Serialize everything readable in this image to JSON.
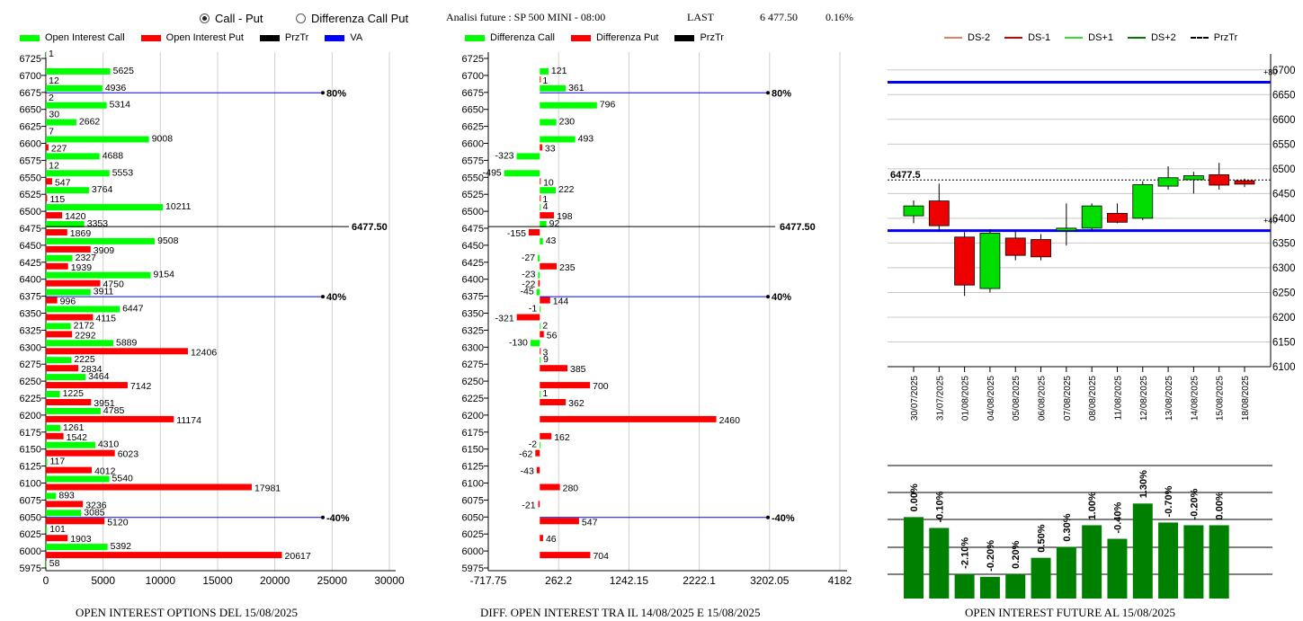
{
  "header": {
    "radio_call_put": "Call - Put",
    "radio_diff": "Differenza Call Put",
    "title": "Analisi future : SP 500 MINI - 08:00",
    "last_label": "LAST",
    "last_value": "6 477.50",
    "change": "0.16%"
  },
  "colors": {
    "green": "#00ff00",
    "red": "#ff0000",
    "black": "#000000",
    "blue": "#0000ff",
    "darkgreen": "#008000"
  },
  "strikes": [
    "6725",
    "6700",
    "6675",
    "6650",
    "6625",
    "6600",
    "6575",
    "6550",
    "6525",
    "6500",
    "6475",
    "6450",
    "6425",
    "6400",
    "6375",
    "6350",
    "6325",
    "6300",
    "6275",
    "6250",
    "6225",
    "6200",
    "6175",
    "6150",
    "6125",
    "6100",
    "6075",
    "6050",
    "6025",
    "6000",
    "5975"
  ],
  "left_panel": {
    "legend": [
      "Open Interest Call",
      "Open Interest Put",
      "PrzTr",
      "VA"
    ],
    "caption": "OPEN INTEREST OPTIONS DEL 15/08/2025",
    "xticks": [
      "0",
      "5000",
      "10000",
      "15000",
      "20000",
      "25000",
      "30000"
    ],
    "price_label": "6477.50",
    "ref_lines": [
      {
        "strike": 6675,
        "label": "80%"
      },
      {
        "strike": 6375,
        "label": "40%"
      },
      {
        "strike": 6050,
        "label": "-40%"
      }
    ]
  },
  "middle_panel": {
    "legend": [
      "Differenza Call",
      "Differenza Put",
      "PrzTr"
    ],
    "caption": "DIFF. OPEN INTEREST TRA IL 14/08/2025 E 15/08/2025",
    "xticks": [
      "-717.75",
      "262.2",
      "1242.15",
      "2222.1",
      "3202.05",
      "4182"
    ],
    "price_label": "6477.50",
    "ref_lines": [
      {
        "strike": 6675,
        "label": "80%"
      },
      {
        "strike": 6375,
        "label": "40%"
      },
      {
        "strike": 6050,
        "label": "-40%"
      }
    ]
  },
  "right_panel": {
    "legend": [
      "DS-2",
      "DS-1",
      "DS+1",
      "DS+2",
      "PrzTr"
    ],
    "caption": "OPEN INTEREST FUTURE AL 15/08/2025",
    "yticks": [
      "6700",
      "6650",
      "6600",
      "6550",
      "6500",
      "6450",
      "6400",
      "6350",
      "6300",
      "6250",
      "6200",
      "6150",
      "6100"
    ],
    "price_label": "6477.5",
    "band_top_label": "+80",
    "band_bottom_label": "+40"
  },
  "chart_data": [
    {
      "type": "bar",
      "title": "OPEN INTEREST OPTIONS DEL 15/08/2025",
      "orientation": "horizontal",
      "categories": [
        "6725",
        "6700",
        "6675",
        "6650",
        "6625",
        "6600",
        "6575",
        "6550",
        "6525",
        "6500",
        "6475",
        "6450",
        "6425",
        "6400",
        "6375",
        "6350",
        "6325",
        "6300",
        "6275",
        "6250",
        "6225",
        "6200",
        "6175",
        "6150",
        "6125",
        "6100",
        "6075",
        "6050",
        "6025",
        "6000",
        "5975"
      ],
      "series": [
        {
          "name": "Open Interest Call",
          "values": [
            1,
            5625,
            4936,
            5314,
            2662,
            9008,
            4688,
            5553,
            3764,
            10211,
            3353,
            9508,
            2327,
            9154,
            3911,
            6447,
            2172,
            5889,
            2225,
            3464,
            1225,
            4785,
            1261,
            4310,
            117,
            5540,
            893,
            3085,
            101,
            5392,
            58
          ]
        },
        {
          "name": "Open Interest Put",
          "values": [
            null,
            12,
            2,
            30,
            7,
            227,
            12,
            547,
            115,
            1420,
            1869,
            3909,
            1939,
            4750,
            996,
            4115,
            2292,
            12406,
            2834,
            7142,
            3951,
            11174,
            1542,
            6023,
            4012,
            17981,
            3236,
            5120,
            1903,
            20617,
            null
          ]
        }
      ],
      "xlim": [
        0,
        32000
      ],
      "price": 6477.5
    },
    {
      "type": "bar",
      "title": "DIFF. OPEN INTEREST TRA IL 14/08/2025 E 15/08/2025",
      "orientation": "horizontal",
      "categories": [
        "6725",
        "6700",
        "6675",
        "6650",
        "6625",
        "6600",
        "6575",
        "6550",
        "6525",
        "6500",
        "6475",
        "6450",
        "6425",
        "6400",
        "6375",
        "6350",
        "6325",
        "6300",
        "6275",
        "6250",
        "6225",
        "6200",
        "6175",
        "6150",
        "6125",
        "6100",
        "6075",
        "6050",
        "6025",
        "6000",
        "5975"
      ],
      "series": [
        {
          "name": "Differenza Call",
          "values": [
            null,
            121,
            361,
            796,
            230,
            493,
            -323,
            -495,
            222,
            4,
            92,
            43,
            -27,
            -23,
            -45,
            -1,
            2,
            -130,
            9,
            null,
            1,
            null,
            null,
            -2,
            null,
            null,
            null,
            null,
            null,
            null,
            null
          ]
        },
        {
          "name": "Differenza Put",
          "values": [
            null,
            1,
            null,
            null,
            null,
            33,
            null,
            10,
            1,
            198,
            -155,
            null,
            235,
            -22,
            144,
            -321,
            56,
            3,
            385,
            700,
            362,
            2460,
            162,
            -62,
            -43,
            280,
            -21,
            547,
            46,
            704,
            null
          ]
        }
      ],
      "xlim": [
        -717.75,
        4182
      ],
      "price": 6477.5
    },
    {
      "type": "candlestick",
      "title": "",
      "dates": [
        "30/07/2025",
        "31/07/2025",
        "01/08/2025",
        "04/08/2025",
        "05/08/2025",
        "06/08/2025",
        "07/08/2025",
        "08/08/2025",
        "11/08/2025",
        "12/08/2025",
        "13/08/2025",
        "14/08/2025",
        "15/08/2025",
        "18/08/2025"
      ],
      "open": [
        6405,
        6435,
        6362,
        6258,
        6360,
        6357,
        6375,
        6380,
        6410,
        6400,
        6465,
        6478,
        6488,
        6476
      ],
      "close": [
        6425,
        6385,
        6265,
        6370,
        6325,
        6322,
        6380,
        6425,
        6392,
        6468,
        6482,
        6486,
        6467,
        6469
      ],
      "high": [
        6436,
        6470,
        6372,
        6378,
        6375,
        6368,
        6430,
        6430,
        6430,
        6475,
        6505,
        6494,
        6512,
        6480
      ],
      "low": [
        6390,
        6375,
        6243,
        6250,
        6315,
        6315,
        6345,
        6375,
        6390,
        6396,
        6458,
        6450,
        6458,
        6463
      ],
      "ylim": [
        6100,
        6725
      ],
      "bands": {
        "upper": 6675,
        "lower": 6375
      },
      "price": 6477.5
    },
    {
      "type": "bar",
      "title": "OPEN INTEREST FUTURE AL 15/08/2025",
      "categories": [
        "30/07/2025",
        "31/07/2025",
        "01/08/2025",
        "04/08/2025",
        "05/08/2025",
        "06/08/2025",
        "07/08/2025",
        "08/08/2025",
        "11/08/2025",
        "12/08/2025",
        "13/08/2025",
        "14/08/2025",
        "15/08/2025",
        "18/08/2025"
      ],
      "values": [
        70,
        66,
        49,
        48,
        49,
        55,
        59,
        67,
        62,
        75,
        68,
        67,
        67
      ],
      "labels": [
        "0.00%",
        "-0.10%",
        "-2.10%",
        "-0.20%",
        "0.20%",
        "0.50%",
        "0.30%",
        "1.00%",
        "-0.40%",
        "1.30%",
        "-0.70%",
        "-0.20%",
        "0.00%"
      ],
      "ylim": [
        40,
        89
      ]
    }
  ]
}
